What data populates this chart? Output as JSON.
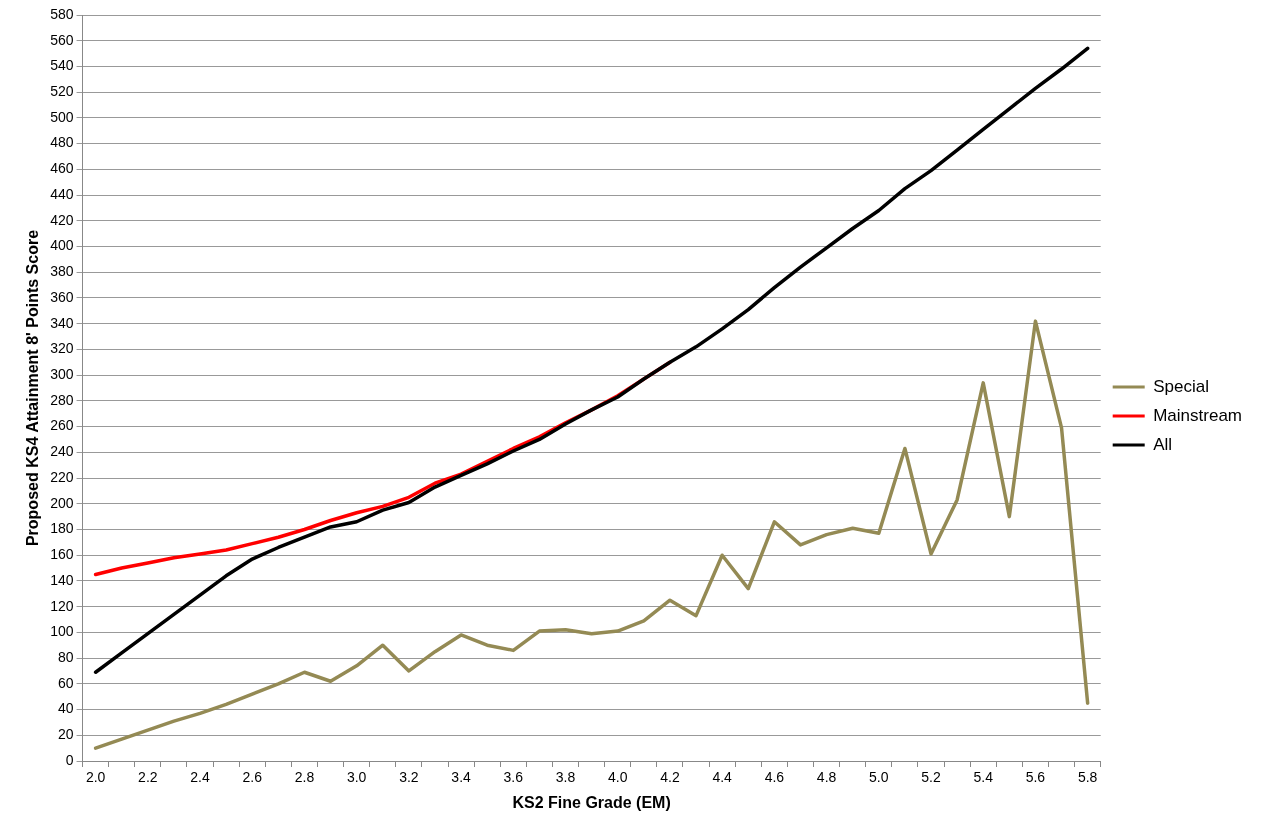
{
  "chart_data": {
    "type": "line",
    "xlabel": "KS2 Fine Grade (EM)",
    "ylabel": "Proposed KS4 Attainment 8' Points Score",
    "categories": [
      "2.0",
      null,
      "2.2",
      null,
      "2.4",
      null,
      "2.6",
      null,
      "2.8",
      null,
      "3.0",
      null,
      "3.2",
      null,
      "3.4",
      null,
      "3.6",
      null,
      "3.8",
      null,
      "4.0",
      null,
      "4.2",
      null,
      "4.4",
      null,
      "4.6",
      null,
      "4.8",
      null,
      "5.0",
      null,
      "5.2",
      null,
      "5.4",
      null,
      "5.6",
      null,
      "5.8"
    ],
    "series": [
      {
        "name": "Special",
        "color": "#948a54",
        "values": [
          10,
          17,
          24,
          31,
          37,
          44,
          52,
          60,
          69,
          62,
          74,
          90,
          70,
          85,
          98,
          90,
          86,
          101,
          102,
          99,
          101,
          109,
          125,
          113,
          160,
          134,
          186,
          168,
          176,
          181,
          177,
          243,
          161,
          203,
          294,
          190,
          342,
          259,
          45
        ]
      },
      {
        "name": "Mainstream",
        "color": "#ff0000",
        "values": [
          145,
          150,
          154,
          158,
          161,
          164,
          169,
          174,
          180,
          187,
          193,
          198,
          205,
          216,
          223,
          233,
          243,
          252,
          263,
          273,
          284,
          297,
          310,
          null,
          null,
          null,
          null,
          null,
          null,
          null,
          null,
          null,
          null,
          null,
          null,
          null,
          null,
          null,
          null
        ]
      },
      {
        "name": "All",
        "color": "#000000",
        "values": [
          69,
          84,
          99,
          114,
          129,
          144,
          157,
          166,
          174,
          182,
          186,
          195,
          201,
          213,
          222,
          231,
          241,
          250,
          262,
          273,
          283,
          297,
          310,
          322,
          336,
          351,
          368,
          384,
          399,
          414,
          428,
          445,
          459,
          475,
          491,
          507,
          523,
          538,
          554
        ]
      }
    ],
    "ylim": [
      0,
      580
    ],
    "yticks": [
      0,
      20,
      40,
      60,
      80,
      100,
      120,
      140,
      160,
      180,
      200,
      220,
      240,
      260,
      280,
      300,
      320,
      340,
      360,
      380,
      400,
      420,
      440,
      460,
      480,
      500,
      520,
      540,
      560,
      580
    ],
    "grid": "y",
    "legend": "right",
    "marker": "none",
    "line_style": "solid"
  }
}
